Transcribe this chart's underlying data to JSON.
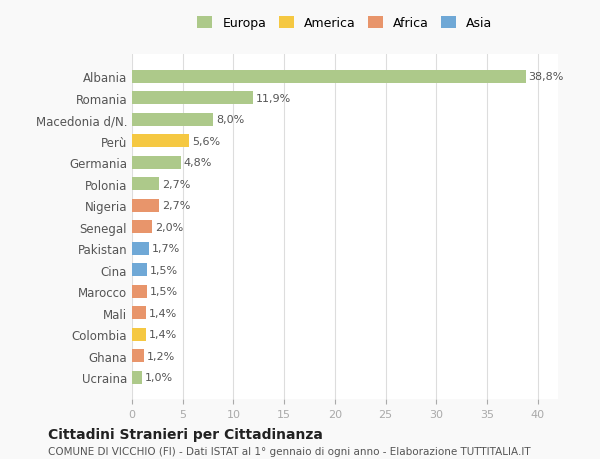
{
  "countries": [
    "Albania",
    "Romania",
    "Macedonia d/N.",
    "Perù",
    "Germania",
    "Polonia",
    "Nigeria",
    "Senegal",
    "Pakistan",
    "Cina",
    "Marocco",
    "Mali",
    "Colombia",
    "Ghana",
    "Ucraina"
  ],
  "values": [
    38.8,
    11.9,
    8.0,
    5.6,
    4.8,
    2.7,
    2.7,
    2.0,
    1.7,
    1.5,
    1.5,
    1.4,
    1.4,
    1.2,
    1.0
  ],
  "labels": [
    "38,8%",
    "11,9%",
    "8,0%",
    "5,6%",
    "4,8%",
    "2,7%",
    "2,7%",
    "2,0%",
    "1,7%",
    "1,5%",
    "1,5%",
    "1,4%",
    "1,4%",
    "1,2%",
    "1,0%"
  ],
  "continents": [
    "Europa",
    "Europa",
    "Europa",
    "America",
    "Europa",
    "Europa",
    "Africa",
    "Africa",
    "Asia",
    "Asia",
    "Africa",
    "Africa",
    "America",
    "Africa",
    "Europa"
  ],
  "colors": {
    "Europa": "#adc98a",
    "America": "#f5c842",
    "Africa": "#e8956b",
    "Asia": "#6fa8d6"
  },
  "legend_order": [
    "Europa",
    "America",
    "Africa",
    "Asia"
  ],
  "title": "Cittadini Stranieri per Cittadinanza",
  "subtitle": "COMUNE DI VICCHIO (FI) - Dati ISTAT al 1° gennaio di ogni anno - Elaborazione TUTTITALIA.IT",
  "xlim": [
    0,
    42
  ],
  "xticks": [
    0,
    5,
    10,
    15,
    20,
    25,
    30,
    35,
    40
  ],
  "background_color": "#f9f9f9",
  "bar_background": "#ffffff",
  "grid_color": "#dddddd"
}
